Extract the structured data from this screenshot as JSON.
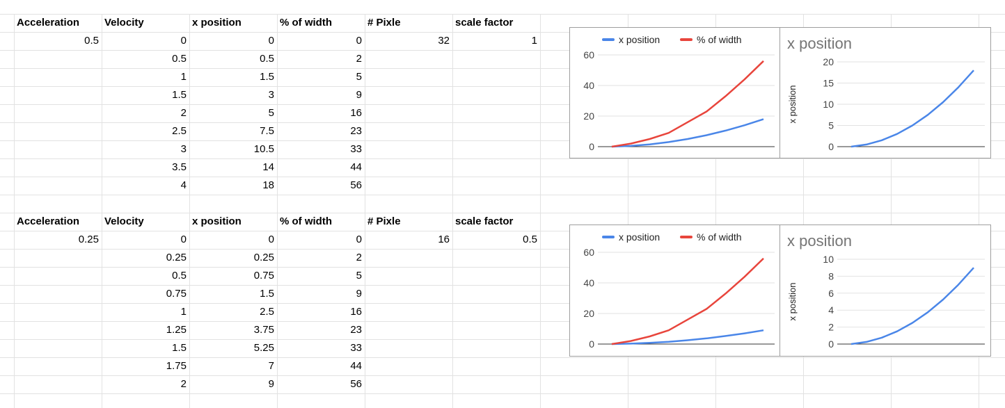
{
  "tables": [
    {
      "headers": [
        "Acceleration",
        "Velocity",
        "x position",
        "% of width",
        "# Pixle",
        "scale factor"
      ],
      "acceleration": "0.5",
      "pixels": "32",
      "scale_factor": "1",
      "velocity": [
        "0",
        "0.5",
        "1",
        "1.5",
        "2",
        "2.5",
        "3",
        "3.5",
        "4"
      ],
      "x_position": [
        "0",
        "0.5",
        "1.5",
        "3",
        "5",
        "7.5",
        "10.5",
        "14",
        "18"
      ],
      "pct_width": [
        "0",
        "2",
        "5",
        "9",
        "16",
        "23",
        "33",
        "44",
        "56"
      ]
    },
    {
      "headers": [
        "Acceleration",
        "Velocity",
        "x position",
        "% of width",
        "# Pixle",
        "scale factor"
      ],
      "acceleration": "0.25",
      "pixels": "16",
      "scale_factor": "0.5",
      "velocity": [
        "0",
        "0.25",
        "0.5",
        "0.75",
        "1",
        "1.25",
        "1.5",
        "1.75",
        "2"
      ],
      "x_position": [
        "0",
        "0.25",
        "0.75",
        "1.5",
        "2.5",
        "3.75",
        "5.25",
        "7",
        "9"
      ],
      "pct_width": [
        "0",
        "2",
        "5",
        "9",
        "16",
        "23",
        "33",
        "44",
        "56"
      ]
    }
  ],
  "colors": {
    "series_x": "#4a86e8",
    "series_pct": "#e8453c",
    "grid": "#e2e2e2",
    "border": "#9e9e9e"
  },
  "chart_data": [
    {
      "type": "line",
      "x": [
        0,
        1,
        2,
        3,
        4,
        5,
        6,
        7,
        8
      ],
      "series": [
        {
          "name": "x position",
          "values": [
            0,
            0.5,
            1.5,
            3,
            5,
            7.5,
            10.5,
            14,
            18
          ]
        },
        {
          "name": "% of width",
          "values": [
            0,
            2,
            5,
            9,
            16,
            23,
            33,
            44,
            56
          ]
        }
      ],
      "ylim": [
        0,
        60
      ],
      "yticks": [
        0,
        20,
        40,
        60
      ],
      "legend": "top",
      "grid": true,
      "title": "",
      "xlabel": "",
      "ylabel": ""
    },
    {
      "type": "line",
      "x": [
        0,
        1,
        2,
        3,
        4,
        5,
        6,
        7,
        8
      ],
      "series": [
        {
          "values": [
            0,
            0.5,
            1.5,
            3,
            5,
            7.5,
            10.5,
            14,
            18
          ]
        }
      ],
      "ylim": [
        0,
        20
      ],
      "yticks": [
        0,
        5,
        10,
        15,
        20
      ],
      "title": "x position",
      "ylabel": "x position",
      "xlabel": "",
      "grid": true
    },
    {
      "type": "line",
      "x": [
        0,
        1,
        2,
        3,
        4,
        5,
        6,
        7,
        8
      ],
      "series": [
        {
          "name": "x position",
          "values": [
            0,
            0.25,
            0.75,
            1.5,
            2.5,
            3.75,
            5.25,
            7,
            9
          ]
        },
        {
          "name": "% of width",
          "values": [
            0,
            2,
            5,
            9,
            16,
            23,
            33,
            44,
            56
          ]
        }
      ],
      "ylim": [
        0,
        60
      ],
      "yticks": [
        0,
        20,
        40,
        60
      ],
      "legend": "top",
      "grid": true,
      "title": "",
      "xlabel": "",
      "ylabel": ""
    },
    {
      "type": "line",
      "x": [
        0,
        1,
        2,
        3,
        4,
        5,
        6,
        7,
        8
      ],
      "series": [
        {
          "values": [
            0,
            0.25,
            0.75,
            1.5,
            2.5,
            3.75,
            5.25,
            7,
            9
          ]
        }
      ],
      "ylim": [
        0,
        10
      ],
      "yticks": [
        0,
        2,
        4,
        6,
        8,
        10
      ],
      "title": "x position",
      "ylabel": "x position",
      "xlabel": "",
      "grid": true
    }
  ]
}
